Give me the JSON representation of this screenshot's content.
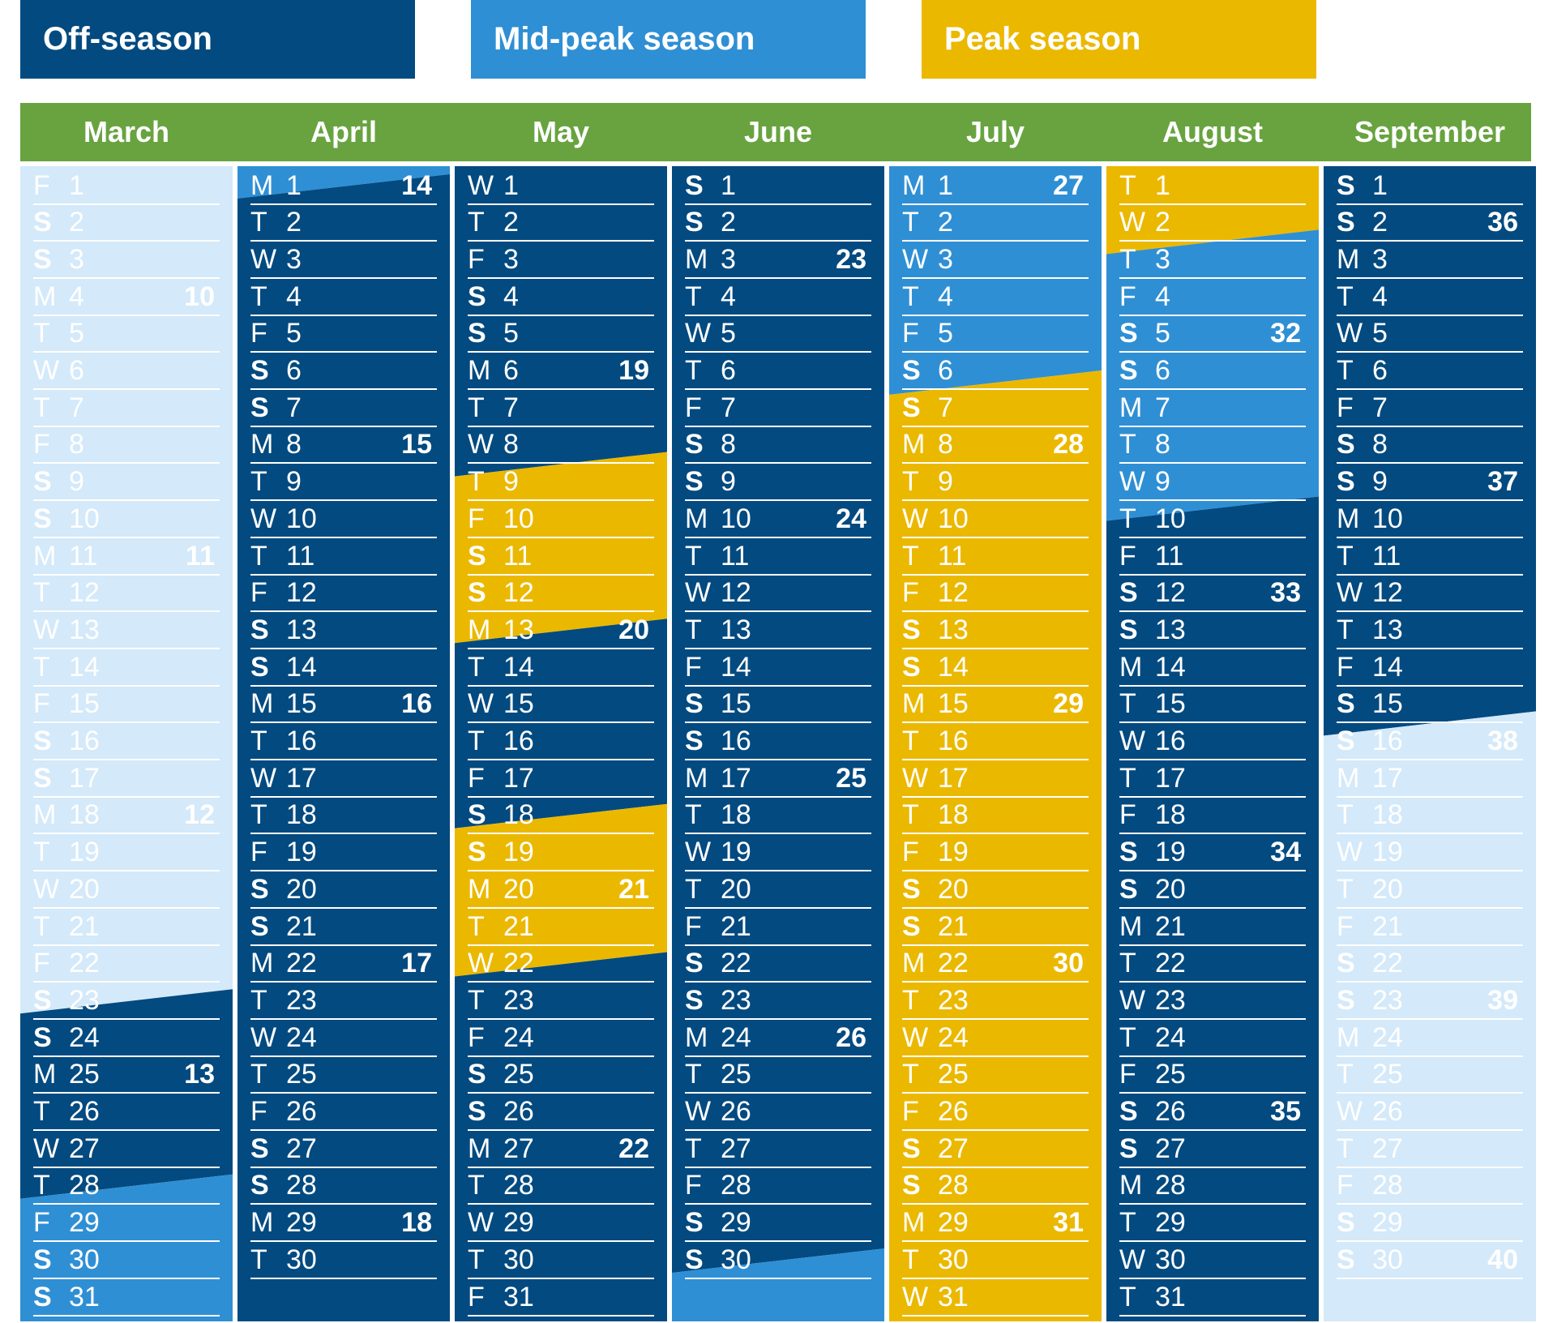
{
  "legend": [
    {
      "label": "Off-season",
      "color": "#034a80"
    },
    {
      "label": "Mid-peak season",
      "color": "#2f8fd4"
    },
    {
      "label": "Peak season",
      "color": "#ebb800"
    }
  ],
  "colors": {
    "off": "#034a80",
    "mid": "#2f8fd4",
    "peak": "#ebb800",
    "none": "#d4e9f9",
    "header": "#68a340"
  },
  "months": [
    {
      "name": "March",
      "start": "F",
      "days": 31,
      "weeks": {
        "4": "10",
        "11": "11",
        "18": "12",
        "25": "13"
      },
      "seasons": [
        {
          "until_day": 22.5,
          "season": "none"
        },
        {
          "until_day": 27.5,
          "season": "off"
        },
        {
          "until_day": 31,
          "season": "mid"
        }
      ]
    },
    {
      "name": "April",
      "start": "M",
      "days": 30,
      "weeks": {
        "1": "14",
        "8": "15",
        "15": "16",
        "22": "17",
        "29": "18"
      },
      "seasons": [
        {
          "until_day": 0.5,
          "season": "mid"
        },
        {
          "until_day": 30,
          "season": "off"
        }
      ]
    },
    {
      "name": "May",
      "start": "W",
      "days": 31,
      "weeks": {
        "6": "19",
        "13": "20",
        "20": "21",
        "27": "22"
      },
      "seasons": [
        {
          "until_day": 8,
          "season": "off"
        },
        {
          "until_day": 12.5,
          "season": "peak"
        },
        {
          "until_day": 17.5,
          "season": "off"
        },
        {
          "until_day": 21.5,
          "season": "peak"
        },
        {
          "until_day": 31,
          "season": "off"
        }
      ]
    },
    {
      "name": "June",
      "start": "S",
      "days": 30,
      "weeks": {
        "3": "23",
        "10": "24",
        "17": "25",
        "24": "26"
      },
      "seasons": [
        {
          "until_day": 29.5,
          "season": "off"
        },
        {
          "until_day": 30,
          "season": "mid"
        }
      ]
    },
    {
      "name": "July",
      "start": "M",
      "days": 31,
      "weeks": {
        "1": "27",
        "8": "28",
        "15": "29",
        "22": "30",
        "29": "31"
      },
      "seasons": [
        {
          "until_day": 5.8,
          "season": "mid"
        },
        {
          "until_day": 31,
          "season": "peak"
        }
      ]
    },
    {
      "name": "August",
      "start": "T",
      "days": 31,
      "weeks": {
        "5": "32",
        "12": "33",
        "19": "34",
        "26": "35"
      },
      "seasons": [
        {
          "until_day": 2,
          "season": "peak"
        },
        {
          "until_day": 9.2,
          "season": "mid"
        },
        {
          "until_day": 31,
          "season": "off"
        }
      ]
    },
    {
      "name": "September",
      "start": "S",
      "days": 30,
      "weeks": {
        "2": "36",
        "9": "37",
        "16": "38",
        "23": "39",
        "30": "40"
      },
      "seasons": [
        {
          "until_day": 15,
          "season": "off"
        },
        {
          "until_day": 30,
          "season": "none"
        }
      ]
    }
  ]
}
